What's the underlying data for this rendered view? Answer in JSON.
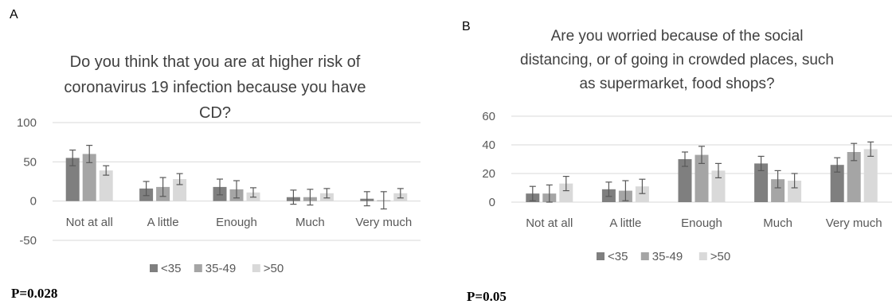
{
  "chart_data": [
    {
      "panel": "A",
      "type": "bar",
      "title": [
        "Do you think that you are at higher risk of",
        "coronavirus 19 infection because you have",
        "CD?"
      ],
      "categories": [
        "Not at all",
        "A little",
        "Enough",
        "Much",
        "Very much"
      ],
      "yticks": [
        100,
        50,
        0,
        -50
      ],
      "ylim": [
        -50,
        100
      ],
      "grid": true,
      "legend_position": "bottom",
      "series": [
        {
          "name": "<35",
          "values": [
            55,
            16,
            18,
            5,
            3
          ],
          "errors": [
            10,
            9,
            10,
            9,
            9
          ],
          "color": "#7f7f7f"
        },
        {
          "name": "35-49",
          "values": [
            60,
            18,
            15,
            5,
            1
          ],
          "errors": [
            11,
            12,
            11,
            10,
            11
          ],
          "color": "#a5a5a5"
        },
        {
          "name": ">50",
          "values": [
            39,
            28,
            11,
            10,
            10
          ],
          "errors": [
            6,
            7,
            6,
            6,
            6
          ],
          "color": "#d9d9d9"
        }
      ],
      "p_value": "P=0.028"
    },
    {
      "panel": "B",
      "type": "bar",
      "title": [
        "Are you worried because of the social",
        "distancing, or of going in crowded places, such",
        "as supermarket, food shops?"
      ],
      "categories": [
        "Not at all",
        "A little",
        "Enough",
        "Much",
        "Very much"
      ],
      "yticks": [
        60,
        40,
        20,
        0
      ],
      "ylim": [
        0,
        60
      ],
      "grid": true,
      "legend_position": "bottom",
      "series": [
        {
          "name": "<35",
          "values": [
            6,
            9,
            30,
            27,
            26
          ],
          "errors": [
            5,
            5,
            5,
            5,
            5
          ],
          "color": "#7f7f7f"
        },
        {
          "name": "35-49",
          "values": [
            6,
            8,
            33,
            16,
            35
          ],
          "errors": [
            6,
            7,
            6,
            6,
            6
          ],
          "color": "#a5a5a5"
        },
        {
          "name": ">50",
          "values": [
            13,
            11,
            22,
            15,
            37
          ],
          "errors": [
            5,
            5,
            5,
            5,
            5
          ],
          "color": "#d9d9d9"
        }
      ],
      "p_value": "P=0.05"
    }
  ],
  "colors": {
    "axis_text": "#595959",
    "title_text": "#404040",
    "gridline": "#d9d9d9",
    "error_bar": "#595959"
  }
}
